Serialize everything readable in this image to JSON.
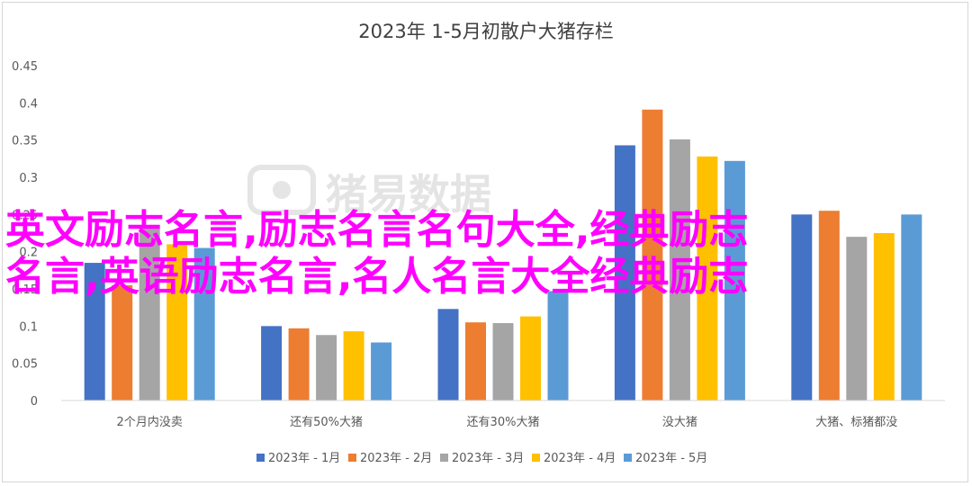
{
  "chart_data": {
    "type": "bar",
    "title": "2023年 1-5月初散户大猪存栏",
    "categories": [
      "2个月内没卖",
      "还有50%大猪",
      "还有30%大猪",
      "没大猪",
      "大猪、标猪都没"
    ],
    "series": [
      {
        "name": "2023年 - 1月",
        "color": "#4472c4",
        "values": [
          0.185,
          0.1,
          0.123,
          0.343,
          0.25
        ]
      },
      {
        "name": "2023年 - 2月",
        "color": "#ed7d31",
        "values": [
          0.155,
          0.097,
          0.105,
          0.391,
          0.255
        ]
      },
      {
        "name": "2023年 - 3月",
        "color": "#a5a5a5",
        "values": [
          0.232,
          0.088,
          0.104,
          0.351,
          0.22
        ]
      },
      {
        "name": "2023年 - 4月",
        "color": "#ffc000",
        "values": [
          0.21,
          0.093,
          0.113,
          0.328,
          0.225
        ]
      },
      {
        "name": "2023年 - 5月",
        "color": "#5b9bd5",
        "values": [
          0.205,
          0.078,
          0.147,
          0.322,
          0.25
        ]
      }
    ],
    "yticks": [
      "0",
      "0.05",
      "0.1",
      "0.15",
      "0.2",
      "0.25",
      "0.3",
      "0.35",
      "0.4",
      "0.45"
    ],
    "ylim": [
      0,
      0.45
    ],
    "grid": false,
    "legend": "bottom"
  },
  "watermark": {
    "text": "猪易数据",
    "icon": "pig-logo-icon"
  },
  "overlay": {
    "line1": "英文励志名言,励志名言名句大全,经典励志",
    "line2": "名言,英语励志名言,名人名言大全经典励志",
    "color": "#ff00ff"
  }
}
